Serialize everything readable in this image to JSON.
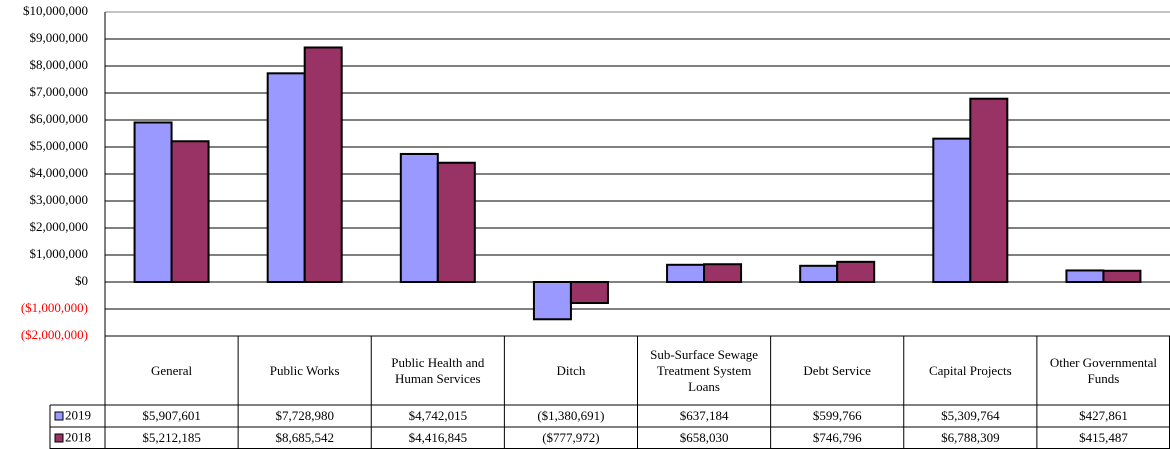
{
  "chart_data": {
    "type": "bar",
    "categories": [
      "General",
      "Public Works",
      "Public Health and Human Services",
      "Ditch",
      "Sub-Surface Sewage Treatment System Loans",
      "Debt Service",
      "Capital Projects",
      "Other Governmental Funds"
    ],
    "series": [
      {
        "name": "2019",
        "color": "#9999ff",
        "values": [
          5907601,
          7728980,
          4742015,
          -1380691,
          637184,
          599766,
          5309764,
          427861
        ],
        "value_labels": [
          "$5,907,601",
          "$7,728,980",
          "$4,742,015",
          "($1,380,691)",
          "$637,184",
          "$599,766",
          "$5,309,764",
          "$427,861"
        ]
      },
      {
        "name": "2018",
        "color": "#993366",
        "values": [
          5212185,
          8685542,
          4416845,
          -777972,
          658030,
          746796,
          6788309,
          415487
        ],
        "value_labels": [
          "$5,212,185",
          "$8,685,542",
          "$4,416,845",
          "($777,972)",
          "$658,030",
          "$746,796",
          "$6,788,309",
          "$415,487"
        ]
      }
    ],
    "ylim": [
      -2000000,
      10000000
    ],
    "yticks": [
      {
        "value": 10000000,
        "label": "$10,000,000"
      },
      {
        "value": 9000000,
        "label": "$9,000,000"
      },
      {
        "value": 8000000,
        "label": "$8,000,000"
      },
      {
        "value": 7000000,
        "label": "$7,000,000"
      },
      {
        "value": 6000000,
        "label": "$6,000,000"
      },
      {
        "value": 5000000,
        "label": "$5,000,000"
      },
      {
        "value": 4000000,
        "label": "$4,000,000"
      },
      {
        "value": 3000000,
        "label": "$3,000,000"
      },
      {
        "value": 2000000,
        "label": "$2,000,000"
      },
      {
        "value": 1000000,
        "label": "$1,000,000"
      },
      {
        "value": 0,
        "label": "$0"
      },
      {
        "value": -1000000,
        "label": "($1,000,000)"
      },
      {
        "value": -2000000,
        "label": "($2,000,000)"
      }
    ],
    "grid": true,
    "negative_tick_color": "#ff0000"
  }
}
